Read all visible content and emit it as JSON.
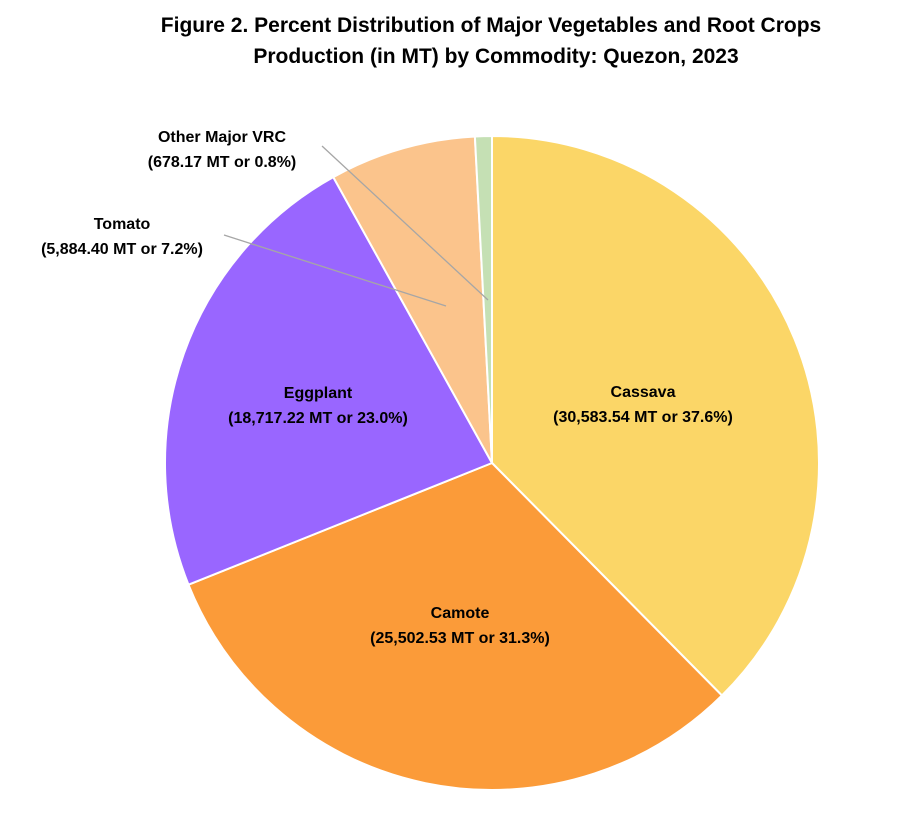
{
  "chart_data": {
    "type": "pie",
    "title_line1": "Figure 2. Percent Distribution of Major Vegetables and Root Crops",
    "title_line2": "Production (in MT) by Commodity: Quezon, 2023",
    "slices": [
      {
        "name": "Cassava",
        "value": 30583.54,
        "percent": 37.6,
        "detail": "(30,583.54 MT or 37.6%)",
        "color": "#FBD667"
      },
      {
        "name": "Camote",
        "value": 25502.53,
        "percent": 31.3,
        "detail": "(25,502.53 MT or 31.3%)",
        "color": "#FB9B39"
      },
      {
        "name": "Eggplant",
        "value": 18717.22,
        "percent": 23.0,
        "detail": "(18,717.22 MT or 23.0%)",
        "color": "#9966FF"
      },
      {
        "name": "Tomato",
        "value": 5884.4,
        "percent": 7.2,
        "detail": "(5,884.40 MT or 7.2%)",
        "color": "#FBC48C"
      },
      {
        "name": "Other Major VRC",
        "value": 678.17,
        "percent": 0.8,
        "detail": "(678.17 MT or 0.8%)",
        "color": "#C5E0B4"
      }
    ]
  }
}
